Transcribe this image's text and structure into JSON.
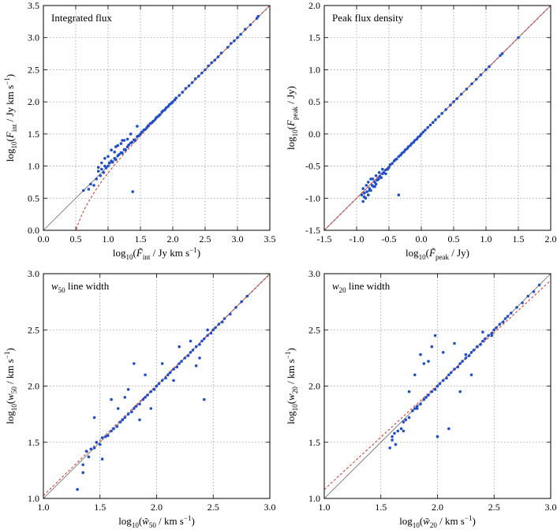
{
  "chart_data": [
    {
      "type": "scatter",
      "title": "Integrated flux",
      "xlabel": {
        "main": "log",
        "base": "10",
        "open": "(",
        "sym": "F̃",
        "sub": "int",
        "rest": " / Jy km s",
        "sup": "−1",
        "close": ")"
      },
      "ylabel": {
        "main": "log",
        "base": "10",
        "open": "(",
        "sym": "F",
        "sub": "int",
        "rest": " / Jy km s",
        "sup": "−1",
        "close": ")"
      },
      "xlim": [
        0.0,
        3.5
      ],
      "ylim": [
        0.0,
        3.5
      ],
      "xticks": [
        "0.0",
        "0.5",
        "1.0",
        "1.5",
        "2.0",
        "2.5",
        "3.0",
        "3.5"
      ],
      "yticks": [
        "0.0",
        "0.5",
        "1.0",
        "1.5",
        "2.0",
        "2.5",
        "3.0",
        "3.5"
      ],
      "grid": true,
      "reference_line": "y = x",
      "fit_curve": "integrated",
      "point_color": "#1f4fc8",
      "series": [
        {
          "x": [
            0.62,
            0.7,
            0.73,
            0.78,
            0.82,
            0.85,
            0.88,
            0.9,
            0.93,
            0.95,
            0.97,
            1.0,
            1.02,
            1.05,
            1.07,
            1.1,
            1.12,
            1.15,
            1.17,
            1.2,
            1.22,
            1.25,
            1.27,
            1.3,
            1.32,
            1.35,
            1.37,
            1.4,
            1.42,
            1.45,
            1.47,
            1.5,
            1.52,
            1.55,
            1.57,
            1.6,
            1.62,
            1.65,
            1.68,
            1.7,
            1.73,
            1.75,
            1.78,
            1.8,
            1.83,
            1.85,
            1.88,
            1.9,
            1.93,
            1.95,
            1.98,
            2.0,
            2.03,
            2.05,
            2.1,
            2.15,
            2.2,
            2.25,
            2.3,
            2.35,
            2.4,
            2.45,
            2.5,
            2.55,
            2.6,
            2.65,
            2.7,
            2.75,
            2.85,
            2.9,
            2.95,
            3.0,
            3.05,
            3.12,
            3.2,
            3.3,
            3.32,
            1.38,
            0.95,
            1.05,
            1.15,
            1.25,
            1.35,
            1.45,
            1.0,
            1.1,
            1.2,
            1.3,
            0.85,
            0.9,
            1.12,
            1.22
          ],
          "y": [
            0.62,
            0.64,
            0.72,
            0.7,
            0.8,
            0.92,
            0.85,
            0.95,
            0.9,
            1.0,
            0.97,
            1.0,
            1.05,
            1.08,
            1.06,
            1.12,
            1.1,
            1.16,
            1.18,
            1.21,
            1.2,
            1.26,
            1.25,
            1.3,
            1.33,
            1.36,
            1.37,
            1.41,
            1.4,
            1.46,
            1.47,
            1.5,
            1.53,
            1.56,
            1.57,
            1.6,
            1.63,
            1.66,
            1.68,
            1.7,
            1.73,
            1.76,
            1.78,
            1.8,
            1.84,
            1.86,
            1.88,
            1.91,
            1.93,
            1.96,
            1.98,
            2.0,
            2.03,
            2.06,
            2.1,
            2.15,
            2.21,
            2.25,
            2.3,
            2.36,
            2.4,
            2.45,
            2.5,
            2.56,
            2.61,
            2.65,
            2.7,
            2.76,
            2.85,
            2.91,
            2.95,
            3.0,
            3.05,
            3.13,
            3.2,
            3.3,
            3.33,
            0.6,
            1.12,
            1.25,
            1.32,
            1.4,
            1.5,
            1.62,
            1.15,
            1.22,
            1.35,
            1.42,
            0.98,
            1.05,
            1.3,
            1.4
          ]
        }
      ]
    },
    {
      "type": "scatter",
      "title": "Peak flux density",
      "xlabel": {
        "main": "log",
        "base": "10",
        "open": "(",
        "sym": "F̃",
        "sub": "peak",
        "rest": " / Jy",
        "sup": "",
        "close": ")"
      },
      "ylabel": {
        "main": "log",
        "base": "10",
        "open": "(",
        "sym": "F",
        "sub": "peak",
        "rest": " / Jy",
        "sup": "",
        "close": ")"
      },
      "xlim": [
        -1.5,
        2.0
      ],
      "ylim": [
        -1.5,
        2.0
      ],
      "xticks": [
        "-1.5",
        "-1.0",
        "-0.5",
        "0.0",
        "0.5",
        "1.0",
        "1.5",
        "2.0"
      ],
      "yticks": [
        "-1.5",
        "-1.0",
        "-0.5",
        "0.0",
        "0.5",
        "1.0",
        "1.5",
        "2.0"
      ],
      "grid": true,
      "reference_line": "y = x",
      "fit_curve": "linear",
      "point_color": "#1f4fc8",
      "series": [
        {
          "x": [
            -0.92,
            -0.9,
            -0.88,
            -0.86,
            -0.84,
            -0.82,
            -0.8,
            -0.78,
            -0.76,
            -0.74,
            -0.72,
            -0.7,
            -0.68,
            -0.66,
            -0.64,
            -0.62,
            -0.6,
            -0.58,
            -0.55,
            -0.52,
            -0.5,
            -0.48,
            -0.45,
            -0.42,
            -0.4,
            -0.38,
            -0.35,
            -0.32,
            -0.3,
            -0.27,
            -0.25,
            -0.22,
            -0.2,
            -0.17,
            -0.15,
            -0.12,
            -0.1,
            -0.07,
            -0.05,
            -0.02,
            0.0,
            0.03,
            0.06,
            0.1,
            0.14,
            0.18,
            0.22,
            0.27,
            0.32,
            0.38,
            0.45,
            0.5,
            0.55,
            0.62,
            0.7,
            0.78,
            0.85,
            0.92,
            1.0,
            1.05,
            1.22,
            1.25,
            1.5,
            -0.35,
            -0.9,
            -0.85,
            -0.8,
            -0.75,
            -0.7,
            -0.88,
            -0.82,
            -0.78,
            -0.72,
            -0.65,
            -0.6,
            -0.55
          ],
          "y": [
            -0.95,
            -1.05,
            -0.92,
            -1.0,
            -0.9,
            -0.95,
            -0.85,
            -0.88,
            -0.8,
            -0.82,
            -0.75,
            -0.78,
            -0.72,
            -0.7,
            -0.66,
            -0.68,
            -0.62,
            -0.6,
            -0.56,
            -0.55,
            -0.52,
            -0.48,
            -0.46,
            -0.42,
            -0.4,
            -0.39,
            -0.35,
            -0.33,
            -0.3,
            -0.28,
            -0.25,
            -0.23,
            -0.2,
            -0.18,
            -0.15,
            -0.13,
            -0.1,
            -0.08,
            -0.05,
            -0.03,
            0.0,
            0.03,
            0.06,
            0.1,
            0.14,
            0.18,
            0.22,
            0.27,
            0.32,
            0.38,
            0.45,
            0.5,
            0.55,
            0.62,
            0.7,
            0.78,
            0.85,
            0.92,
            1.0,
            1.05,
            1.22,
            1.25,
            1.5,
            -0.95,
            -0.85,
            -0.8,
            -0.88,
            -0.7,
            -0.65,
            -0.98,
            -0.75,
            -0.7,
            -0.82,
            -0.6,
            -0.55,
            -0.62
          ]
        }
      ]
    },
    {
      "type": "scatter",
      "title": {
        "sym": "w",
        "sub": "50",
        "rest": "  line width"
      },
      "xlabel": {
        "main": "log",
        "base": "10",
        "open": "(",
        "sym": "w̃",
        "sub": "50",
        "rest": " / km s",
        "sup": "−1",
        "close": ")"
      },
      "ylabel": {
        "main": "log",
        "base": "10",
        "open": "(",
        "sym": "w",
        "sub": "50",
        "rest": " / km s",
        "sup": "−1",
        "close": ")"
      },
      "xlim": [
        1.0,
        3.0
      ],
      "ylim": [
        1.0,
        3.0
      ],
      "xticks": [
        "1.0",
        "1.5",
        "2.0",
        "2.5",
        "3.0"
      ],
      "yticks": [
        "1.0",
        "1.5",
        "2.0",
        "2.5",
        "3.0"
      ],
      "grid": true,
      "reference_line": "y = x",
      "fit_curve": "w50",
      "point_color": "#1f4fc8",
      "series": [
        {
          "x": [
            1.3,
            1.35,
            1.38,
            1.4,
            1.42,
            1.45,
            1.47,
            1.5,
            1.52,
            1.55,
            1.57,
            1.6,
            1.62,
            1.65,
            1.68,
            1.7,
            1.72,
            1.75,
            1.78,
            1.8,
            1.82,
            1.85,
            1.88,
            1.9,
            1.92,
            1.95,
            1.98,
            2.0,
            2.02,
            2.05,
            2.08,
            2.1,
            2.12,
            2.15,
            2.18,
            2.2,
            2.22,
            2.25,
            2.28,
            2.3,
            2.32,
            2.35,
            2.38,
            2.4,
            2.42,
            2.45,
            2.48,
            2.5,
            2.52,
            2.55,
            2.58,
            2.6,
            2.65,
            2.7,
            2.75,
            2.8,
            1.35,
            1.45,
            1.6,
            1.75,
            1.8,
            1.9,
            2.05,
            2.2,
            2.3,
            2.35,
            2.42,
            1.52,
            1.66,
            1.72,
            1.85,
            2.15,
            1.95,
            2.45,
            2.38
          ],
          "y": [
            1.08,
            1.3,
            1.42,
            1.37,
            1.44,
            1.45,
            1.5,
            1.48,
            1.54,
            1.55,
            1.56,
            1.6,
            1.62,
            1.64,
            1.68,
            1.7,
            1.72,
            1.75,
            1.77,
            1.8,
            1.82,
            1.84,
            1.88,
            1.9,
            1.92,
            1.95,
            1.97,
            2.0,
            2.02,
            2.05,
            2.07,
            2.1,
            2.12,
            2.15,
            2.17,
            2.2,
            2.22,
            2.25,
            2.27,
            2.3,
            2.32,
            2.35,
            2.37,
            2.4,
            2.42,
            2.45,
            2.47,
            2.5,
            2.52,
            2.55,
            2.57,
            2.6,
            2.64,
            2.7,
            2.75,
            2.8,
            1.23,
            1.72,
            1.88,
            1.97,
            2.2,
            2.1,
            2.2,
            2.35,
            2.4,
            2.18,
            1.88,
            1.35,
            1.8,
            1.9,
            1.7,
            2.05,
            1.8,
            2.5,
            2.25
          ]
        }
      ]
    },
    {
      "type": "scatter",
      "title": {
        "sym": "w",
        "sub": "20",
        "rest": "  line width"
      },
      "xlabel": {
        "main": "log",
        "base": "10",
        "open": "(",
        "sym": "w̃",
        "sub": "20",
        "rest": " / km s",
        "sup": "−1",
        "close": ")"
      },
      "ylabel": {
        "main": "log",
        "base": "10",
        "open": "(",
        "sym": "w",
        "sub": "20",
        "rest": " / km s",
        "sup": "−1",
        "close": ")"
      },
      "xlim": [
        1.0,
        3.0
      ],
      "ylim": [
        1.0,
        3.0
      ],
      "xticks": [
        "1.0",
        "1.5",
        "2.0",
        "2.5",
        "3.0"
      ],
      "yticks": [
        "1.0",
        "1.5",
        "2.0",
        "2.5",
        "3.0"
      ],
      "grid": true,
      "reference_line": "y = x",
      "fit_curve": "w20",
      "point_color": "#1f4fc8",
      "series": [
        {
          "x": [
            1.58,
            1.6,
            1.62,
            1.65,
            1.68,
            1.7,
            1.72,
            1.75,
            1.78,
            1.8,
            1.82,
            1.85,
            1.88,
            1.9,
            1.92,
            1.95,
            1.98,
            2.0,
            2.02,
            2.05,
            2.08,
            2.1,
            2.12,
            2.15,
            2.18,
            2.2,
            2.22,
            2.25,
            2.28,
            2.3,
            2.32,
            2.35,
            2.38,
            2.4,
            2.42,
            2.45,
            2.48,
            2.5,
            2.52,
            2.55,
            2.58,
            2.6,
            2.62,
            2.65,
            2.7,
            2.75,
            2.8,
            2.85,
            2.9,
            1.6,
            1.63,
            1.8,
            1.85,
            1.95,
            1.98,
            2.05,
            2.1,
            2.2,
            2.3,
            2.4,
            2.48,
            2.0,
            1.92,
            1.75,
            1.88,
            2.15,
            2.25,
            1.7,
            1.82
          ],
          "y": [
            1.45,
            1.52,
            1.58,
            1.6,
            1.62,
            1.68,
            1.7,
            1.72,
            1.78,
            1.8,
            1.82,
            1.84,
            1.88,
            1.9,
            1.92,
            1.95,
            1.97,
            2.0,
            2.02,
            2.05,
            2.07,
            2.1,
            2.12,
            2.15,
            2.17,
            2.2,
            2.22,
            2.25,
            2.27,
            2.3,
            2.32,
            2.35,
            2.37,
            2.4,
            2.42,
            2.45,
            2.47,
            2.5,
            2.52,
            2.55,
            2.57,
            2.6,
            2.62,
            2.65,
            2.7,
            2.74,
            2.8,
            2.84,
            2.9,
            1.55,
            1.48,
            2.1,
            2.28,
            2.35,
            2.45,
            2.3,
            1.62,
            1.95,
            2.1,
            2.48,
            2.45,
            1.55,
            2.22,
            1.95,
            2.2,
            2.38,
            2.28,
            1.6,
            1.8
          ]
        }
      ]
    }
  ]
}
